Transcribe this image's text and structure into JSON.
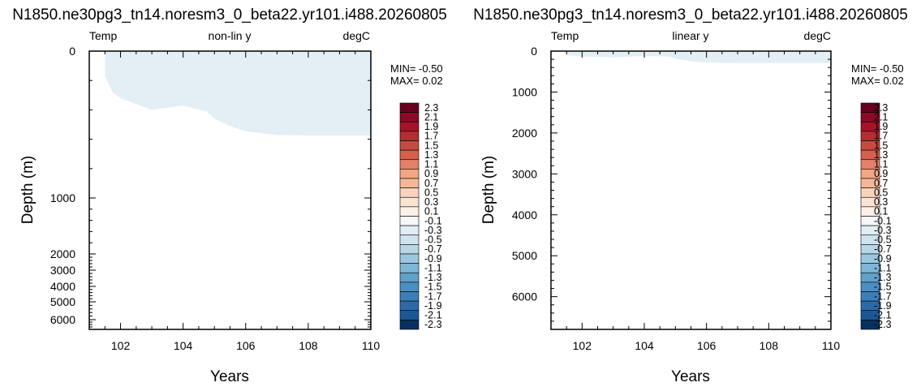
{
  "colorbar": {
    "labels": [
      "2.3",
      "2.1",
      "1.9",
      "1.7",
      "1.5",
      "1.3",
      "1.1",
      "0.9",
      "0.7",
      "0.5",
      "0.3",
      "0.1",
      "-0.1",
      "-0.3",
      "-0.5",
      "-0.7",
      "-0.9",
      "-1.1",
      "-1.3",
      "-1.5",
      "-1.7",
      "-1.9",
      "-2.1",
      "-2.3"
    ],
    "colors": [
      "#67001f",
      "#8a0b25",
      "#a51429",
      "#b52c33",
      "#c64a40",
      "#d6604d",
      "#e38169",
      "#f2a684",
      "#f4b899",
      "#f9d2bd",
      "#fbe3d4",
      "#fdf0e8",
      "#f4f8fb",
      "#e2eef5",
      "#cfe3ef",
      "#b8d6e8",
      "#9ac7e0",
      "#7fb6d6",
      "#60a0cb",
      "#4a8fc1",
      "#3b7fb9",
      "#2c6aa7",
      "#1c5796",
      "#053061"
    ]
  },
  "chart_data": [
    {
      "type": "heatmap",
      "title": "N1850.ne30pg3_tn14.noresm3_0_beta22.yr101.i488.20260805",
      "left_label": "Temp",
      "center_label": "non-lin y",
      "right_label": "degC",
      "xlabel": "Years",
      "ylabel": "Depth (m)",
      "xlim": [
        101,
        110
      ],
      "ylim": [
        0,
        6800
      ],
      "y_scale": "non-linear (stretched upper ocean)",
      "x_ticks": [
        "102",
        "104",
        "106",
        "108",
        "110"
      ],
      "y_ticks": [
        "0",
        "1000",
        "2000",
        "3000",
        "4000",
        "5000",
        "6000"
      ],
      "min_text": "MIN= -0.50",
      "max_text": "MAX=  0.02",
      "region": {
        "level": "-0.1 to 0.1",
        "x": [
          101.5,
          101.5,
          101.75,
          102.0,
          102.5,
          103.0,
          104.0,
          104.75,
          105.0,
          105.5,
          106.0,
          106.5,
          107.0,
          108.0,
          109.0,
          110.0,
          110.0
        ],
        "bottom_depth": [
          0,
          170,
          280,
          320,
          360,
          400,
          370,
          410,
          460,
          510,
          545,
          560,
          570,
          575,
          575,
          575,
          0
        ]
      }
    },
    {
      "type": "heatmap",
      "title": "N1850.ne30pg3_tn14.noresm3_0_beta22.yr101.i488.20260805",
      "left_label": "Temp",
      "center_label": "linear y",
      "right_label": "degC",
      "xlabel": "Years",
      "ylabel": "Depth (m)",
      "xlim": [
        101,
        110
      ],
      "ylim": [
        0,
        6800
      ],
      "y_scale": "linear",
      "x_ticks": [
        "102",
        "104",
        "106",
        "108",
        "110"
      ],
      "y_ticks": [
        "0",
        "1000",
        "2000",
        "3000",
        "4000",
        "5000",
        "6000"
      ],
      "min_text": "MIN= -0.50",
      "max_text": "MAX=  0.02",
      "region": {
        "level": "-0.1 to 0.1",
        "x": [
          101.5,
          101.5,
          102.0,
          103.0,
          104.0,
          104.75,
          105.0,
          105.5,
          106.0,
          107.0,
          108.0,
          109.0,
          110.0,
          110.0
        ],
        "bottom_depth": [
          0,
          100,
          130,
          150,
          120,
          130,
          180,
          250,
          280,
          290,
          290,
          290,
          290,
          0
        ]
      }
    }
  ]
}
